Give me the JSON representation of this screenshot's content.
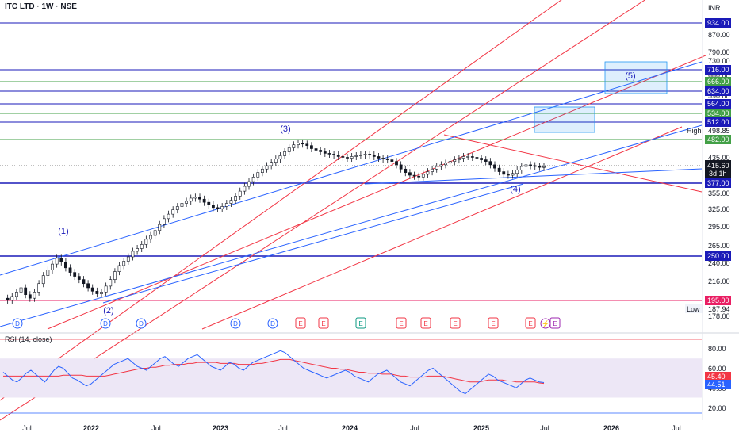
{
  "header": {
    "title": "ITC LTD · 1W · NSE",
    "currency": "INR"
  },
  "colors": {
    "h_blue": "#1a1ab8",
    "h_green": "#43a047",
    "h_magenta": "#e91e63",
    "ch_red": "#f23645",
    "tl_blue": "#2962ff",
    "candle_up": "#131722",
    "rsi_line": "#2962ff",
    "rsi_ma": "#f23645",
    "rsi_band": "#ede7f6",
    "text": "#131722"
  },
  "chart_data": {
    "type": "candlestick",
    "symbol": "ITC LTD",
    "interval": "1W",
    "exchange": "NSE",
    "x_ticks": [
      "Jul",
      "2022",
      "Jul",
      "2023",
      "Jul",
      "2024",
      "Jul",
      "2025",
      "Jul",
      "2026",
      "Jul"
    ],
    "y_ticks": [
      "870.00",
      "790.00",
      "730.00",
      "680.00",
      "590.00",
      "435.00",
      "355.00",
      "325.00",
      "295.00",
      "265.00",
      "240.00",
      "216.00",
      "178.00"
    ],
    "horizontal_levels": [
      {
        "label": "934.00",
        "color": "blue"
      },
      {
        "label": "716.00",
        "color": "blue"
      },
      {
        "label": "666.00",
        "color": "green"
      },
      {
        "label": "634.00",
        "color": "blue"
      },
      {
        "label": "564.00",
        "color": "blue"
      },
      {
        "label": "534.00",
        "color": "green"
      },
      {
        "label": "512.00",
        "color": "blue"
      },
      {
        "label": "482.00",
        "color": "green"
      },
      {
        "label": "377.00",
        "color": "blue"
      },
      {
        "label": "250.00",
        "color": "blue"
      },
      {
        "label": "195.00",
        "color": "magenta"
      }
    ],
    "high_marker": {
      "label": "High",
      "value": "498.85"
    },
    "low_marker": {
      "label": "Low",
      "value": "187.94"
    },
    "last_price": {
      "value": "415.60",
      "countdown": "3d 1h"
    },
    "wave_labels": [
      "(1)",
      "(2)",
      "(3)",
      "(4)",
      "(5)"
    ],
    "event_markers": [
      "D",
      "D",
      "D",
      "D",
      "D",
      "E",
      "E",
      "E",
      "E",
      "E",
      "E",
      "E",
      "E",
      "E"
    ],
    "price_series": [
      198,
      196,
      200,
      205,
      210,
      202,
      198,
      205,
      215,
      225,
      232,
      240,
      248,
      243,
      235,
      229,
      224,
      220,
      215,
      210,
      206,
      203,
      205,
      212,
      220,
      230,
      238,
      244,
      250,
      258,
      262,
      268,
      276,
      282,
      290,
      300,
      310,
      318,
      326,
      332,
      338,
      342,
      348,
      350,
      346,
      340,
      335,
      330,
      328,
      332,
      338,
      344,
      352,
      362,
      372,
      382,
      392,
      402,
      410,
      418,
      426,
      434,
      442,
      452,
      462,
      470,
      475,
      472,
      468,
      460,
      456,
      452,
      448,
      446,
      444,
      440,
      438,
      436,
      440,
      442,
      444,
      446,
      444,
      440,
      436,
      434,
      432,
      428,
      420,
      410,
      402,
      396,
      394,
      392,
      398,
      404,
      410,
      416,
      420,
      424,
      428,
      432,
      436,
      440,
      440,
      438,
      436,
      432,
      428,
      420,
      412,
      404,
      398,
      396,
      400,
      408,
      416,
      420,
      418,
      416,
      414,
      415.6
    ],
    "rsi": {
      "title": "RSI (14, close)",
      "ticks": [
        "80.00",
        "60.00",
        "40.00",
        "20.00"
      ],
      "value": "45.40",
      "ma_value": "44.51",
      "upper_band": 70,
      "lower_band": 30,
      "series": [
        56,
        52,
        48,
        46,
        50,
        55,
        58,
        54,
        50,
        46,
        52,
        58,
        62,
        60,
        55,
        50,
        48,
        45,
        42,
        44,
        48,
        52,
        56,
        60,
        64,
        66,
        68,
        70,
        66,
        62,
        60,
        58,
        62,
        66,
        70,
        72,
        68,
        64,
        62,
        66,
        70,
        72,
        74,
        70,
        66,
        62,
        60,
        58,
        62,
        66,
        64,
        60,
        58,
        62,
        66,
        68,
        70,
        72,
        74,
        76,
        78,
        76,
        72,
        68,
        64,
        60,
        58,
        56,
        54,
        52,
        50,
        52,
        54,
        56,
        58,
        56,
        52,
        50,
        48,
        46,
        50,
        54,
        56,
        58,
        54,
        50,
        46,
        44,
        42,
        46,
        50,
        54,
        58,
        60,
        56,
        52,
        48,
        44,
        40,
        36,
        34,
        38,
        42,
        46,
        50,
        54,
        52,
        48,
        46,
        44,
        42,
        40,
        44,
        48,
        50,
        48,
        46,
        45.4
      ],
      "ma": [
        52,
        52,
        52,
        52,
        52,
        52,
        52,
        52,
        52,
        52,
        52,
        52,
        52,
        53,
        53,
        53,
        53,
        53,
        52,
        52,
        52,
        52,
        52,
        53,
        54,
        55,
        56,
        57,
        58,
        59,
        60,
        60,
        61,
        61,
        62,
        63,
        63,
        64,
        64,
        64,
        65,
        65,
        66,
        66,
        66,
        66,
        66,
        65,
        65,
        65,
        65,
        64,
        64,
        64,
        64,
        65,
        65,
        66,
        67,
        68,
        69,
        69,
        69,
        68,
        67,
        66,
        65,
        64,
        63,
        62,
        61,
        60,
        60,
        59,
        59,
        58,
        57,
        56,
        56,
        55,
        55,
        55,
        54,
        54,
        54,
        53,
        52,
        52,
        51,
        51,
        51,
        51,
        52,
        52,
        52,
        52,
        51,
        50,
        49,
        48,
        47,
        46,
        46,
        46,
        47,
        48,
        48,
        48,
        48,
        47,
        47,
        46,
        46,
        46,
        46,
        46,
        45,
        44.51
      ]
    }
  }
}
